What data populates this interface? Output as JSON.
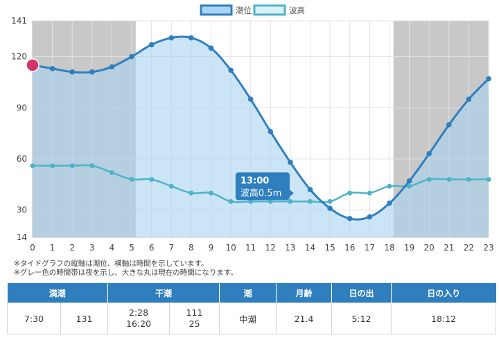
{
  "chart_data": {
    "type": "line",
    "x": [
      0,
      1,
      2,
      3,
      4,
      5,
      6,
      7,
      8,
      9,
      10,
      11,
      12,
      13,
      14,
      15,
      16,
      17,
      18,
      19,
      20,
      21,
      22,
      23
    ],
    "x_ticks": [
      "0",
      "1",
      "2",
      "3",
      "4",
      "5",
      "6",
      "7",
      "8",
      "9",
      "10",
      "11",
      "12",
      "13",
      "14",
      "15",
      "16",
      "17",
      "18",
      "19",
      "20",
      "21",
      "22",
      "23"
    ],
    "y_ticks": [
      "14",
      "30",
      "60",
      "90",
      "120",
      "141"
    ],
    "ylim": [
      14,
      141
    ],
    "xlim": [
      0,
      23
    ],
    "grid": true,
    "legend_position": "top-center",
    "night_periods": [
      [
        0,
        5.2
      ],
      [
        18.2,
        23
      ]
    ],
    "current_hour": 0,
    "series": [
      {
        "name": "潮位",
        "fill": true,
        "color": "#2f7fbf",
        "fill_color": "#a9d3f2",
        "values": [
          115,
          113,
          111,
          111,
          114,
          120,
          127,
          131,
          131,
          125,
          112,
          95,
          76,
          58,
          42,
          31,
          25,
          26,
          34,
          47,
          63,
          80,
          95,
          107
        ]
      },
      {
        "name": "波高",
        "fill": false,
        "color": "#4fb3c8",
        "fill_color": "#d9f0f5",
        "values": [
          56,
          56,
          56,
          56,
          52,
          48,
          48,
          44,
          40,
          40,
          35,
          35,
          35,
          35,
          35,
          35,
          40,
          40,
          44,
          44,
          48,
          48,
          48,
          48
        ]
      }
    ],
    "tooltip": {
      "hour": 13,
      "title": "13:00",
      "body": "波高0.5m"
    }
  },
  "notes": [
    "※タイドグラフの縦軸は潮位、横軸は時間を示しています。",
    "※グレー色の時間帯は夜を示し、大きな丸は現在の時間になります。"
  ],
  "table": {
    "headers": [
      "満潮",
      "干潮",
      "潮",
      "月齢",
      "日の出",
      "日の入り"
    ],
    "high_tide_time": "7:30",
    "high_tide_level": "131",
    "low_tide_time_1": "2:28",
    "low_tide_time_2": "16:20",
    "low_tide_level_1": "111",
    "low_tide_level_2": "25",
    "tide_type": "中潮",
    "moon_age": "21.4",
    "sunrise": "5:12",
    "sunset": "18:12"
  },
  "colors": {
    "night": "#c8c8c8",
    "grid": "#e2e2e2",
    "tooltip_bg": "#2f7fbf",
    "current_dot": "#d6336c"
  }
}
